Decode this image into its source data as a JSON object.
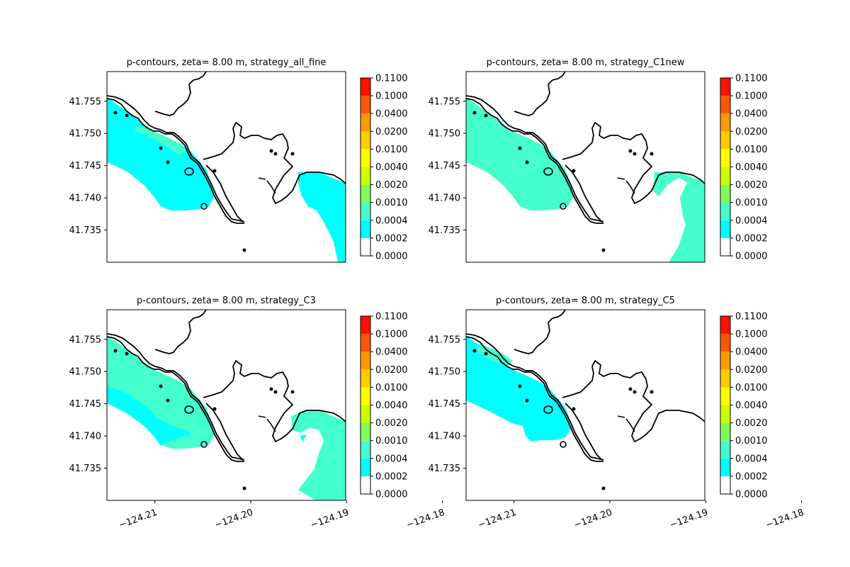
{
  "colorbar": {
    "levels": [
      "0.0000",
      "0.0002",
      "0.0004",
      "0.0010",
      "0.0020",
      "0.0040",
      "0.0100",
      "0.0200",
      "0.0400",
      "0.1000",
      "0.1100"
    ],
    "colors": [
      "#ffffff",
      "#00ffff",
      "#44ffcc",
      "#7fff55",
      "#ccff00",
      "#ffff00",
      "#ffcc00",
      "#ff9900",
      "#ff5500",
      "#ff1100"
    ]
  },
  "chart_data": [
    {
      "type": "contour",
      "title": "p-contours, zeta= 8.00 m, strategy_all_fine",
      "x_ticks": [
        "−124.21",
        "−124.20",
        "−124.19",
        "−124.18"
      ],
      "y_ticks": [
        "41.735",
        "41.740",
        "41.745",
        "41.750",
        "41.755"
      ],
      "show_x_ticks": false,
      "fill_bands": [
        "0.0002-0.0004",
        "0.0004-0.0010"
      ]
    },
    {
      "type": "contour",
      "title": "p-contours, zeta= 8.00 m, strategy_C1new",
      "x_ticks": [
        "−124.21",
        "−124.20",
        "−124.19",
        "−124.18"
      ],
      "y_ticks": [
        "41.735",
        "41.740",
        "41.745",
        "41.750",
        "41.755"
      ],
      "show_x_ticks": false,
      "fill_bands": [
        "0.0002-0.0004",
        "0.0004-0.0010"
      ]
    },
    {
      "type": "contour",
      "title": "p-contours, zeta= 8.00 m, strategy_C3",
      "x_ticks": [
        "−124.21",
        "−124.20",
        "−124.19",
        "−124.18"
      ],
      "y_ticks": [
        "41.735",
        "41.740",
        "41.745",
        "41.750",
        "41.755"
      ],
      "show_x_ticks": true,
      "fill_bands": [
        "0.0002-0.0004",
        "0.0004-0.0010"
      ]
    },
    {
      "type": "contour",
      "title": "p-contours, zeta= 8.00 m, strategy_C5",
      "x_ticks": [
        "−124.21",
        "−124.20",
        "−124.19",
        "−124.18"
      ],
      "y_ticks": [
        "41.735",
        "41.740",
        "41.745",
        "41.750",
        "41.755"
      ],
      "show_x_ticks": true,
      "fill_bands": [
        "0.0002-0.0004",
        "0.0004-0.0010"
      ]
    }
  ]
}
